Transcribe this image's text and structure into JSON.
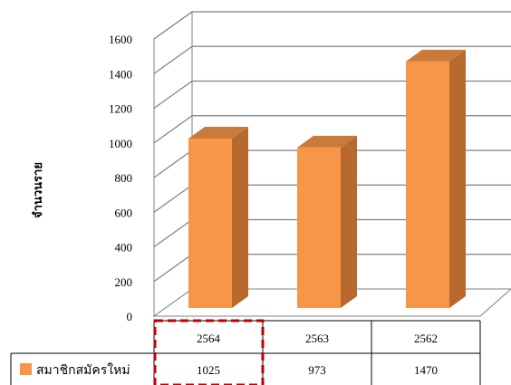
{
  "chart_data": {
    "type": "bar",
    "style": "3d-column-with-data-table",
    "categories": [
      "2564",
      "2563",
      "2562"
    ],
    "series": [
      {
        "name": "สมาชิกสมัครใหม่",
        "values": [
          1025,
          973,
          1470
        ],
        "color": "#F79646"
      }
    ],
    "ylabel": "จำนวนราย",
    "ylim": [
      0,
      1600
    ],
    "yticks": [
      "0",
      "200",
      "400",
      "600",
      "800",
      "1000",
      "1200",
      "1400",
      "1600"
    ],
    "grid": true,
    "legend_placement": "data-table-left",
    "highlight_category": "2564",
    "highlight_color": "#C00000",
    "colors": {
      "bar_front": "#F79646",
      "bar_side": "#B86A2E",
      "bar_top": "#C97B3C",
      "gridline": "#808080"
    }
  }
}
